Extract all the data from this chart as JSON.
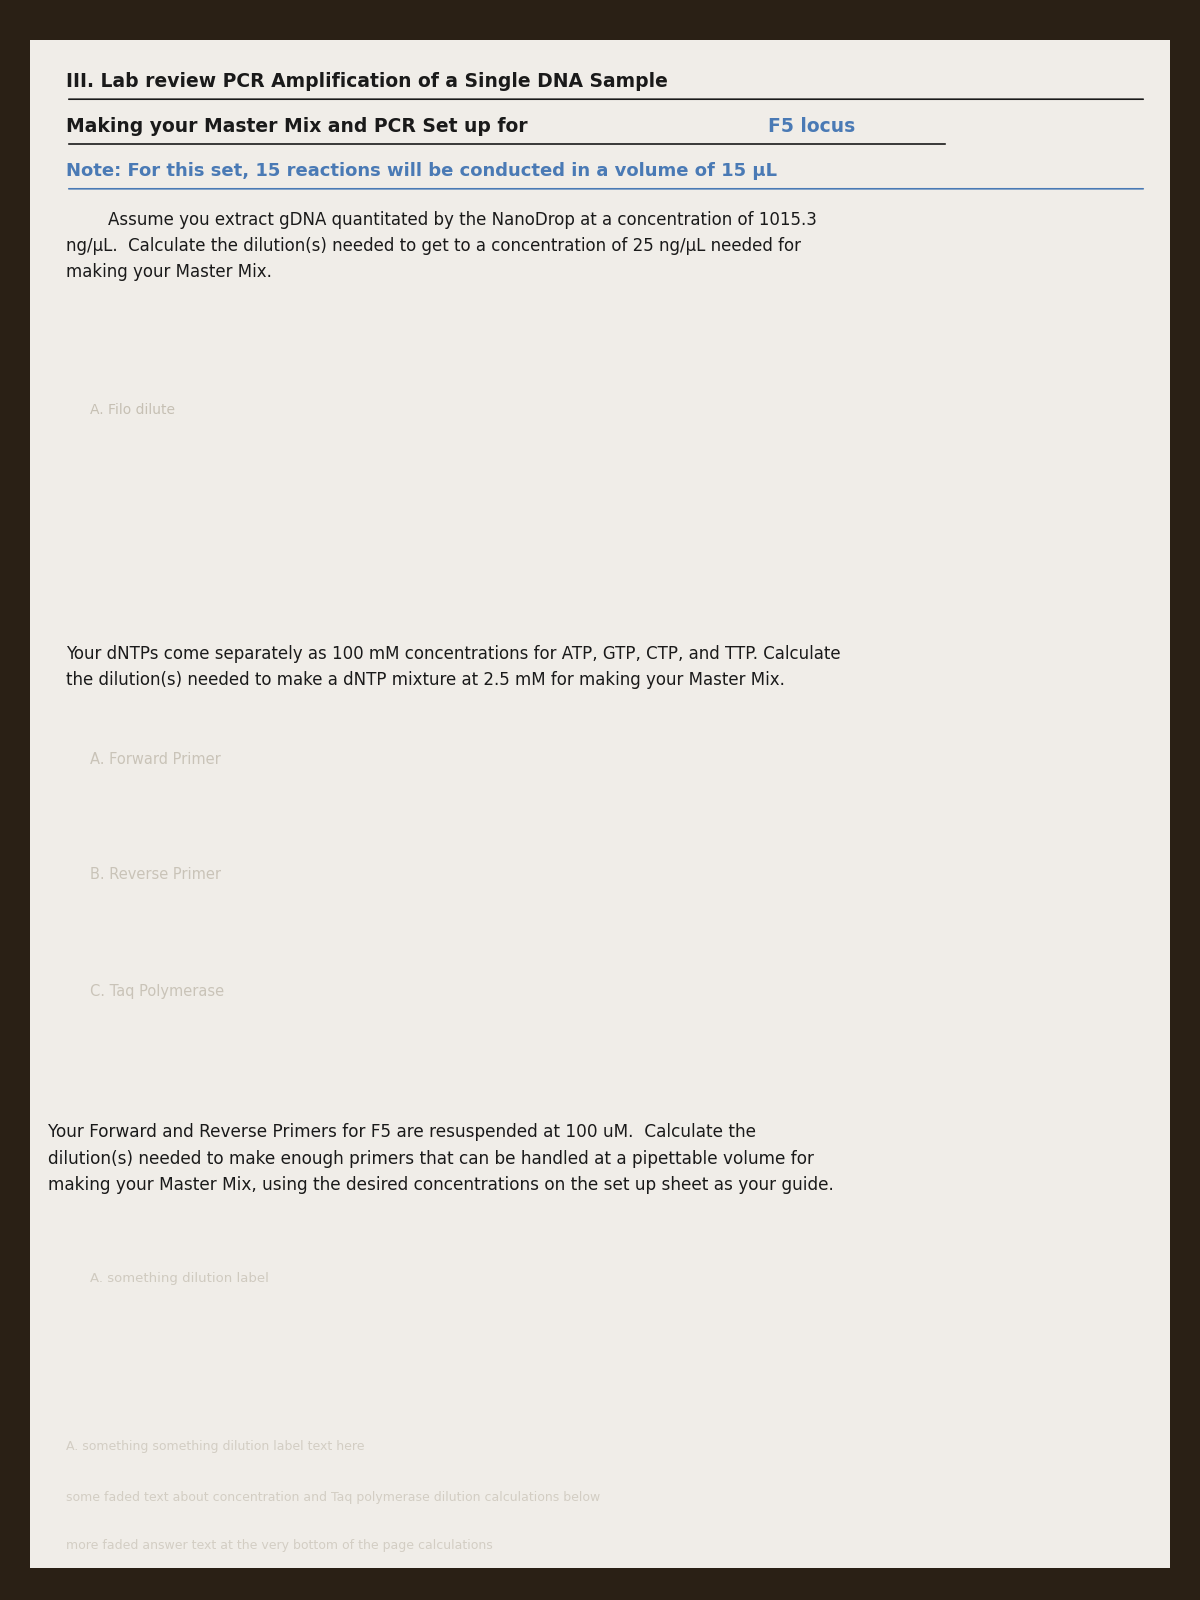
{
  "bg_color_top": "#2a2015",
  "paper_color": "#f0ede8",
  "title1": "III. Lab review PCR Amplification of a Single DNA Sample",
  "title2": "Making your Master Mix and PCR Set up for ",
  "title2_highlight": "F5 locus",
  "title3": "Note: For this set, 15 reactions will be conducted in a volume of 15 μL",
  "para1": "        Assume you extract gDNA quantitated by the NanoDrop at a concentration of 1015.3\nng/μL.  Calculate the dilution(s) needed to get to a concentration of 25 ng/μL needed for\nmaking your Master Mix.",
  "ghost_label1": "A. Filo dilute",
  "para2": "Your dNTPs come separately as 100 mM concentrations for ATP, GTP, CTP, and TTP. Calculate\nthe dilution(s) needed to make a dNTP mixture at 2.5 mM for making your Master Mix.",
  "ghost_label2": "A. Forward Primer",
  "ghost_label3": "B. Reverse Primer",
  "ghost_label4": "C. Taq Polymerase",
  "para3": "Your Forward and Reverse Primers for F5 are resuspended at 100 uM.  Calculate the\ndilution(s) needed to make enough primers that can be handled at a pipettable volume for\nmaking your Master Mix, using the desired concentrations on the set up sheet as your guide.",
  "ghost_label5": "A. something dilution label",
  "ghost_text_bottom1": "A. something something dilution label text here",
  "ghost_text_bottom2": "some faded text about concentration and Taq polymerase dilution calculations below",
  "ghost_text_bottom3": "more faded answer text at the very bottom of the page calculations",
  "text_color": "#1a1a1a",
  "blue_color": "#4a7ab5",
  "ghost_color": "#b0a898",
  "title_underline_color": "#1a1a1a",
  "blue_underline_color": "#4a7ab5"
}
